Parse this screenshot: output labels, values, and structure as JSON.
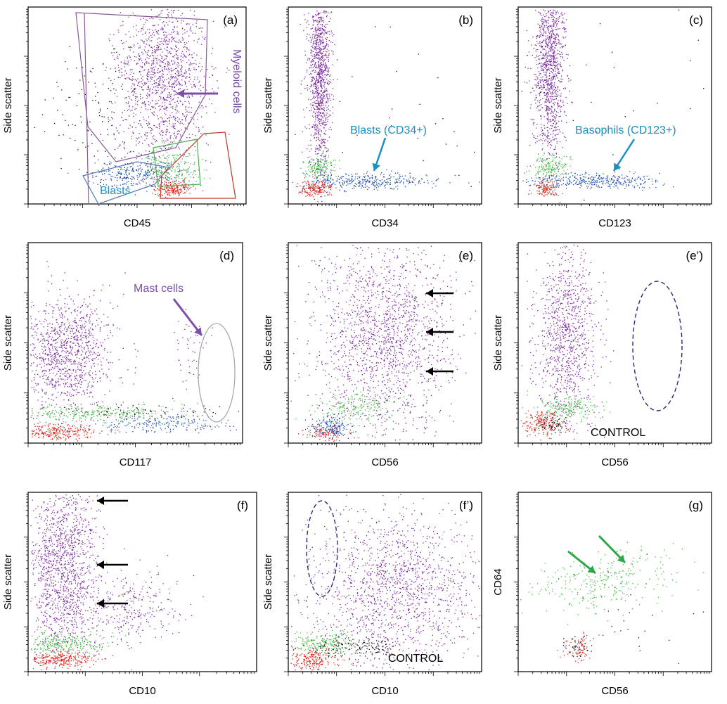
{
  "colors": {
    "myeloid": "#7a2aa0",
    "blast": "#1f4fb0",
    "green": "#3fbf3f",
    "red": "#e02a1a",
    "black": "#111111",
    "annotation_purple": "#7b4fa8",
    "annotation_blue": "#1a8fc0",
    "arrow_green": "#2aa84a",
    "gate_purple": "#8a5a9a",
    "gate_red": "#c0392b",
    "gate_green": "#4caf50",
    "gate_blue": "#5577bb",
    "ellipse_gray": "#aaaaaa",
    "ellipse_navy": "#2a2a7a"
  },
  "chart_data": [
    {
      "id": "a",
      "type": "scatter",
      "letter": "(a)",
      "xlabel": "CD45",
      "ylabel": "Side scatter",
      "annotations": [
        {
          "text": "Myeloid cells",
          "color": "annotation_purple"
        },
        {
          "text": "Blasts",
          "color": "annotation_blue"
        }
      ],
      "populations": [
        "myeloid",
        "blast",
        "green",
        "red",
        "black"
      ]
    },
    {
      "id": "b",
      "type": "scatter",
      "letter": "(b)",
      "xlabel": "CD34",
      "ylabel": "Side scatter",
      "annotations": [
        {
          "text": "Blasts (CD34+)",
          "color": "annotation_blue"
        }
      ],
      "populations": [
        "myeloid",
        "green",
        "red",
        "blast",
        "black"
      ]
    },
    {
      "id": "c",
      "type": "scatter",
      "letter": "(c)",
      "xlabel": "CD123",
      "ylabel": "Side scatter",
      "annotations": [
        {
          "text": "Basophils (CD123+)",
          "color": "annotation_blue"
        }
      ],
      "populations": [
        "myeloid",
        "green",
        "red",
        "blast",
        "black"
      ]
    },
    {
      "id": "d",
      "type": "scatter",
      "letter": "(d)",
      "xlabel": "CD117",
      "ylabel": "Side scatter",
      "annotations": [
        {
          "text": "Mast cells",
          "color": "annotation_purple"
        }
      ],
      "populations": [
        "myeloid",
        "green",
        "red",
        "blast",
        "black"
      ]
    },
    {
      "id": "e",
      "type": "scatter",
      "letter": "(e)",
      "xlabel": "CD56",
      "ylabel": "Side scatter",
      "annotations": [],
      "populations": [
        "myeloid",
        "green",
        "red",
        "blast"
      ]
    },
    {
      "id": "e2",
      "type": "scatter",
      "letter": "(e’)",
      "xlabel": "CD56",
      "ylabel": "Side scatter",
      "annotations": [
        {
          "text": "CONTROL",
          "color": "black"
        }
      ],
      "populations": [
        "myeloid",
        "green",
        "red",
        "black"
      ]
    },
    {
      "id": "f",
      "type": "scatter",
      "letter": "(f)",
      "xlabel": "CD10",
      "ylabel": "Side scatter",
      "annotations": [],
      "populations": [
        "myeloid",
        "green",
        "red"
      ]
    },
    {
      "id": "f2",
      "type": "scatter",
      "letter": "(f’)",
      "xlabel": "CD10",
      "ylabel": "Side scatter",
      "annotations": [
        {
          "text": "CONTROL",
          "color": "black"
        }
      ],
      "populations": [
        "myeloid",
        "green",
        "red",
        "black"
      ]
    },
    {
      "id": "g",
      "type": "scatter",
      "letter": "(g)",
      "xlabel": "CD56",
      "ylabel": "CD64",
      "annotations": [],
      "populations": [
        "green",
        "red",
        "black"
      ]
    }
  ]
}
